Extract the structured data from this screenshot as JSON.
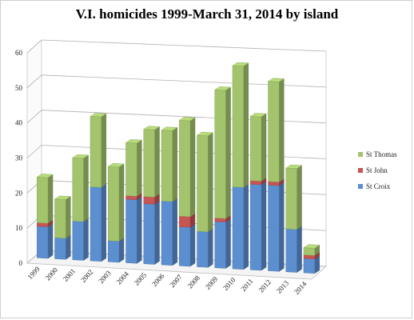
{
  "chart_data": {
    "type": "bar",
    "stacked": true,
    "three_d": true,
    "title": "V.I. homicides 1999-March 31, 2014 by island",
    "xlabel": "",
    "ylabel": "",
    "ylim": [
      0,
      60
    ],
    "yticks": [
      0,
      10,
      20,
      30,
      40,
      50,
      60
    ],
    "grid": true,
    "legend_position": "right",
    "categories": [
      "1999",
      "2000",
      "2001",
      "2002",
      "2003",
      "2004",
      "2005",
      "2006",
      "2007",
      "2008",
      "2009",
      "2010",
      "2011",
      "2012",
      "2013",
      "2014"
    ],
    "series": [
      {
        "name": "St Croix",
        "color": "#5b8fd0",
        "values": [
          9,
          6,
          11,
          21,
          6,
          18,
          17,
          18,
          11,
          10,
          13,
          23,
          24,
          24,
          12,
          4
        ]
      },
      {
        "name": "St John",
        "color": "#c65553",
        "values": [
          1,
          0,
          0,
          0,
          0,
          1,
          2,
          0,
          3,
          0,
          1,
          0,
          1,
          1,
          0,
          1
        ]
      },
      {
        "name": "St Thomas",
        "color": "#a3c46c",
        "values": [
          13,
          11,
          18,
          20,
          21,
          15,
          19,
          20,
          27,
          27,
          36,
          34,
          18,
          28,
          17,
          2
        ]
      }
    ],
    "legend_order": [
      "St Thomas",
      "St John",
      "St Croix"
    ]
  }
}
